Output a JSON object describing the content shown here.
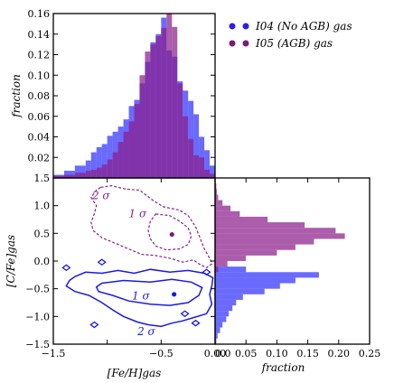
{
  "chart_data": {
    "type": "scatter-with-marginal-histograms",
    "legend": {
      "placement": "top-right",
      "entries": [
        {
          "label": "I04 (No AGB) gas",
          "color": "#2b1fe8"
        },
        {
          "label": "I05 (AGB) gas",
          "color": "#7a1a7a"
        }
      ]
    },
    "top_histogram": {
      "ylabel": "fraction",
      "xlim": [
        -1.5,
        0.0
      ],
      "ylim": [
        0.0,
        0.16
      ],
      "y_ticks": [
        "0.16",
        "0.14",
        "0.12",
        "0.10",
        "0.08",
        "0.06",
        "0.04",
        "0.02"
      ],
      "y_tick_values": [
        0.16,
        0.14,
        0.12,
        0.1,
        0.08,
        0.06,
        0.04,
        0.02
      ],
      "bin_edges": [
        -1.5,
        -1.4,
        -1.3,
        -1.2,
        -1.15,
        -1.1,
        -1.05,
        -1.0,
        -0.95,
        -0.9,
        -0.85,
        -0.8,
        -0.75,
        -0.7,
        -0.65,
        -0.6,
        -0.55,
        -0.5,
        -0.45,
        -0.4,
        -0.35,
        -0.3,
        -0.25,
        -0.2,
        -0.15,
        -0.1,
        -0.05,
        0.0
      ],
      "series": [
        {
          "name": "I04 (No AGB) gas",
          "color": "#3030ff",
          "values": [
            0.003,
            0.007,
            0.012,
            0.017,
            0.025,
            0.03,
            0.033,
            0.041,
            0.045,
            0.05,
            0.057,
            0.07,
            0.076,
            0.092,
            0.113,
            0.132,
            0.14,
            0.156,
            0.124,
            0.118,
            0.094,
            0.085,
            0.075,
            0.062,
            0.04,
            0.027,
            0.012
          ]
        },
        {
          "name": "I05 (AGB) gas",
          "color": "#8b1f8b",
          "values": [
            0.002,
            0.003,
            0.005,
            0.007,
            0.008,
            0.01,
            0.013,
            0.018,
            0.025,
            0.035,
            0.045,
            0.055,
            0.072,
            0.1,
            0.123,
            0.13,
            0.138,
            0.146,
            0.16,
            0.147,
            0.092,
            0.06,
            0.038,
            0.022,
            0.02,
            0.008,
            0.004
          ]
        }
      ]
    },
    "scatter": {
      "xlabel": "[Fe/H]gas",
      "ylabel": "[C/Fe]gas",
      "xlim": [
        -1.5,
        0.0
      ],
      "ylim": [
        -1.5,
        1.5
      ],
      "x_ticks": [
        "−1.5",
        "−0.5",
        "0.0"
      ],
      "x_tick_values": [
        -1.5,
        -0.5,
        0.0
      ],
      "y_ticks": [
        "1.5",
        "1.0",
        "0.5",
        "0.0",
        "−0.5",
        "−1.0",
        "−1.5"
      ],
      "y_tick_values": [
        1.5,
        1.0,
        0.5,
        0.0,
        -0.5,
        -1.0,
        -1.5
      ],
      "points": [
        {
          "series": "I04 (No AGB) gas",
          "x": -0.38,
          "y": -0.6,
          "color": "#1a1ae6"
        },
        {
          "series": "I05 (AGB) gas",
          "x": -0.4,
          "y": 0.48,
          "color": "#7a1a7a"
        }
      ],
      "contour_labels": [
        {
          "text": "2 σ",
          "series": "I05 (AGB) gas",
          "x": -1.14,
          "y": 1.18
        },
        {
          "text": "1 σ",
          "series": "I05 (AGB) gas",
          "x": -0.8,
          "y": 0.86
        },
        {
          "text": "1 σ",
          "series": "I04 (No AGB) gas",
          "x": -0.77,
          "y": -0.63
        },
        {
          "text": "2 σ",
          "series": "I04 (No AGB) gas",
          "x": -0.72,
          "y": -1.27
        }
      ],
      "contours": [
        {
          "series": "I05 (AGB) gas",
          "level": "2 sigma",
          "style": "dashed",
          "color": "#8b1f8b",
          "path": [
            [
              -1.06,
              1.33
            ],
            [
              -0.96,
              1.36
            ],
            [
              -0.83,
              1.3
            ],
            [
              -0.7,
              1.28
            ],
            [
              -0.58,
              1.1
            ],
            [
              -0.48,
              0.98
            ],
            [
              -0.33,
              0.92
            ],
            [
              -0.25,
              0.82
            ],
            [
              -0.18,
              0.62
            ],
            [
              -0.14,
              0.42
            ],
            [
              -0.1,
              0.22
            ],
            [
              -0.05,
              0.05
            ],
            [
              -0.03,
              -0.05
            ],
            [
              -0.08,
              -0.12
            ],
            [
              -0.15,
              -0.05
            ],
            [
              -0.2,
              0.02
            ],
            [
              -0.3,
              -0.02
            ],
            [
              -0.42,
              0.05
            ],
            [
              -0.55,
              0.1
            ],
            [
              -0.68,
              0.12
            ],
            [
              -0.78,
              0.2
            ],
            [
              -0.9,
              0.3
            ],
            [
              -1.05,
              0.42
            ],
            [
              -1.13,
              0.55
            ],
            [
              -1.15,
              0.7
            ],
            [
              -1.12,
              0.85
            ],
            [
              -1.1,
              1.0
            ],
            [
              -1.15,
              1.15
            ],
            [
              -1.1,
              1.28
            ],
            [
              -1.06,
              1.33
            ]
          ]
        },
        {
          "series": "I05 (AGB) gas",
          "level": "1 sigma",
          "style": "dashed",
          "color": "#8b1f8b",
          "path": [
            [
              -0.55,
              0.85
            ],
            [
              -0.42,
              0.82
            ],
            [
              -0.33,
              0.72
            ],
            [
              -0.25,
              0.6
            ],
            [
              -0.22,
              0.45
            ],
            [
              -0.25,
              0.3
            ],
            [
              -0.33,
              0.22
            ],
            [
              -0.45,
              0.2
            ],
            [
              -0.55,
              0.27
            ],
            [
              -0.6,
              0.4
            ],
            [
              -0.62,
              0.55
            ],
            [
              -0.6,
              0.72
            ],
            [
              -0.55,
              0.85
            ]
          ]
        },
        {
          "series": "I04 (No AGB) gas",
          "level": "2 sigma",
          "style": "solid",
          "color": "#1a1ae6",
          "path": [
            [
              -1.3,
              -0.28
            ],
            [
              -1.2,
              -0.2
            ],
            [
              -1.05,
              -0.22
            ],
            [
              -0.9,
              -0.17
            ],
            [
              -0.75,
              -0.22
            ],
            [
              -0.6,
              -0.15
            ],
            [
              -0.42,
              -0.2
            ],
            [
              -0.25,
              -0.17
            ],
            [
              -0.1,
              -0.22
            ],
            [
              -0.02,
              -0.3
            ],
            [
              -0.03,
              -0.45
            ],
            [
              -0.05,
              -0.6
            ],
            [
              -0.03,
              -0.78
            ],
            [
              -0.08,
              -0.95
            ],
            [
              -0.2,
              -1.02
            ],
            [
              -0.3,
              -1.08
            ],
            [
              -0.4,
              -1.12
            ],
            [
              -0.5,
              -1.18
            ],
            [
              -0.62,
              -1.15
            ],
            [
              -0.72,
              -1.1
            ],
            [
              -0.85,
              -1.0
            ],
            [
              -0.95,
              -0.88
            ],
            [
              -1.05,
              -0.75
            ],
            [
              -1.17,
              -0.62
            ],
            [
              -1.3,
              -0.55
            ],
            [
              -1.38,
              -0.45
            ],
            [
              -1.35,
              -0.35
            ],
            [
              -1.3,
              -0.28
            ]
          ]
        },
        {
          "series": "I04 (No AGB) gas",
          "level": "1 sigma",
          "style": "solid",
          "color": "#1a1ae6",
          "path": [
            [
              -1.05,
              -0.4
            ],
            [
              -0.85,
              -0.35
            ],
            [
              -0.6,
              -0.38
            ],
            [
              -0.4,
              -0.33
            ],
            [
              -0.22,
              -0.38
            ],
            [
              -0.12,
              -0.48
            ],
            [
              -0.15,
              -0.62
            ],
            [
              -0.25,
              -0.75
            ],
            [
              -0.42,
              -0.8
            ],
            [
              -0.6,
              -0.78
            ],
            [
              -0.8,
              -0.72
            ],
            [
              -0.95,
              -0.62
            ],
            [
              -1.08,
              -0.55
            ],
            [
              -1.1,
              -0.47
            ],
            [
              -1.05,
              -0.4
            ]
          ]
        }
      ]
    },
    "right_histogram": {
      "xlabel": "fraction",
      "xlim": [
        0.0,
        0.25
      ],
      "ylim": [
        -1.5,
        1.5
      ],
      "x_ticks": [
        "0.00",
        "0.05",
        "0.10",
        "0.15",
        "0.20",
        "0.25"
      ],
      "x_tick_values": [
        0.0,
        0.05,
        0.1,
        0.15,
        0.2,
        0.25
      ],
      "bin_edges": [
        -1.5,
        -1.4,
        -1.3,
        -1.2,
        -1.1,
        -1.0,
        -0.9,
        -0.8,
        -0.7,
        -0.6,
        -0.5,
        -0.4,
        -0.3,
        -0.2,
        -0.1,
        0.0,
        0.1,
        0.2,
        0.3,
        0.4,
        0.5,
        0.6,
        0.7,
        0.8,
        0.9,
        1.0,
        1.1,
        1.2,
        1.3,
        1.4,
        1.5
      ],
      "series": [
        {
          "name": "I04 (No AGB) gas",
          "color": "#3030ff",
          "values": [
            0.002,
            0.004,
            0.008,
            0.012,
            0.018,
            0.022,
            0.028,
            0.034,
            0.045,
            0.08,
            0.105,
            0.13,
            0.168,
            0.05,
            0.0,
            0,
            0,
            0,
            0,
            0,
            0,
            0,
            0,
            0,
            0,
            0,
            0,
            0,
            0,
            0
          ]
        },
        {
          "name": "I05 (AGB) gas",
          "color": "#8b1f8b",
          "values": [
            0,
            0,
            0,
            0,
            0,
            0,
            0,
            0,
            0,
            0,
            0,
            0,
            0,
            0.005,
            0.02,
            0.05,
            0.1,
            0.13,
            0.16,
            0.21,
            0.195,
            0.145,
            0.085,
            0.04,
            0.025,
            0.012,
            0.005,
            0.003,
            0.002,
            0.001
          ]
        }
      ]
    }
  }
}
